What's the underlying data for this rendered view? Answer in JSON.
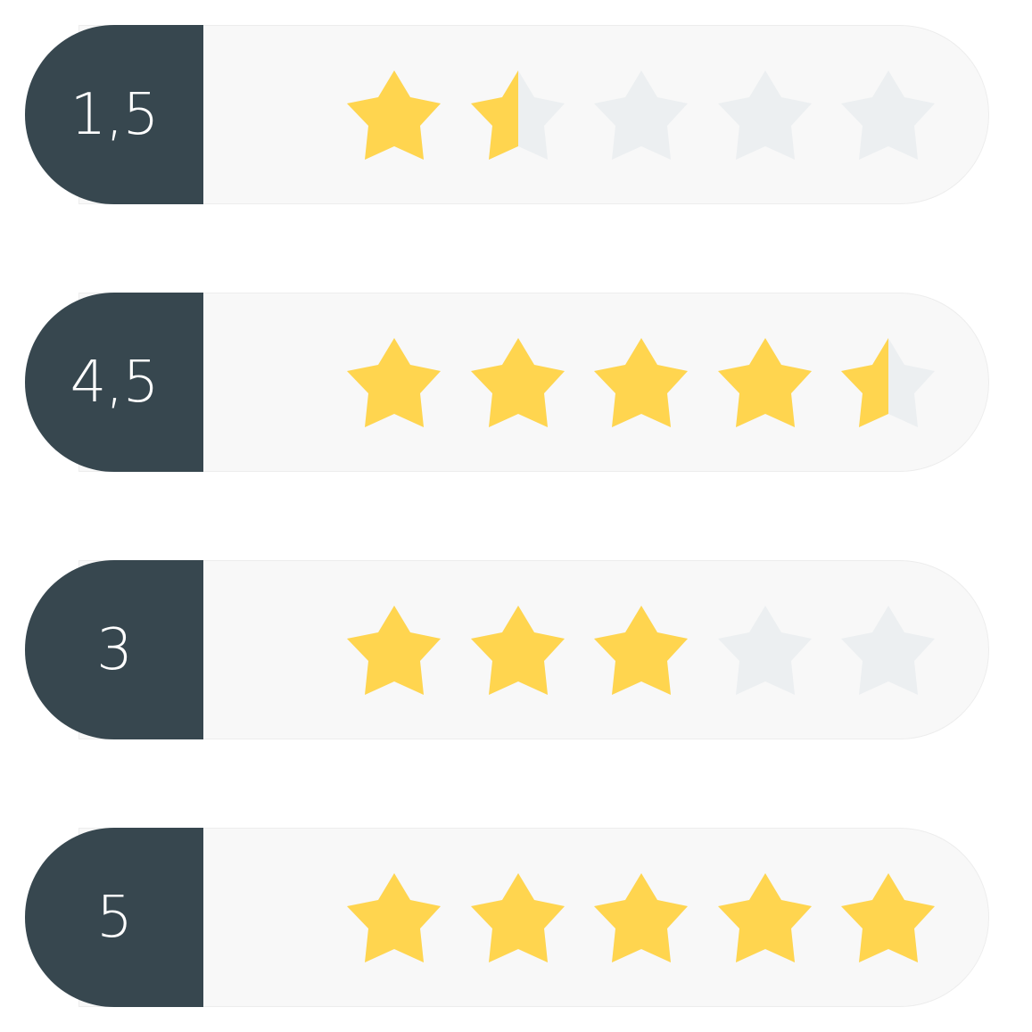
{
  "colors": {
    "badge": "#37474f",
    "track": "#f8f8f8",
    "star_filled": "#ffd54f",
    "star_empty": "#eceff1",
    "badge_text": "#ffffff"
  },
  "icons": {
    "star": "star-icon"
  },
  "max_stars": 5,
  "ratings": [
    {
      "label": "1,5",
      "value": 1.5
    },
    {
      "label": "4,5",
      "value": 4.5
    },
    {
      "label": "3",
      "value": 3
    },
    {
      "label": "5",
      "value": 5
    }
  ]
}
